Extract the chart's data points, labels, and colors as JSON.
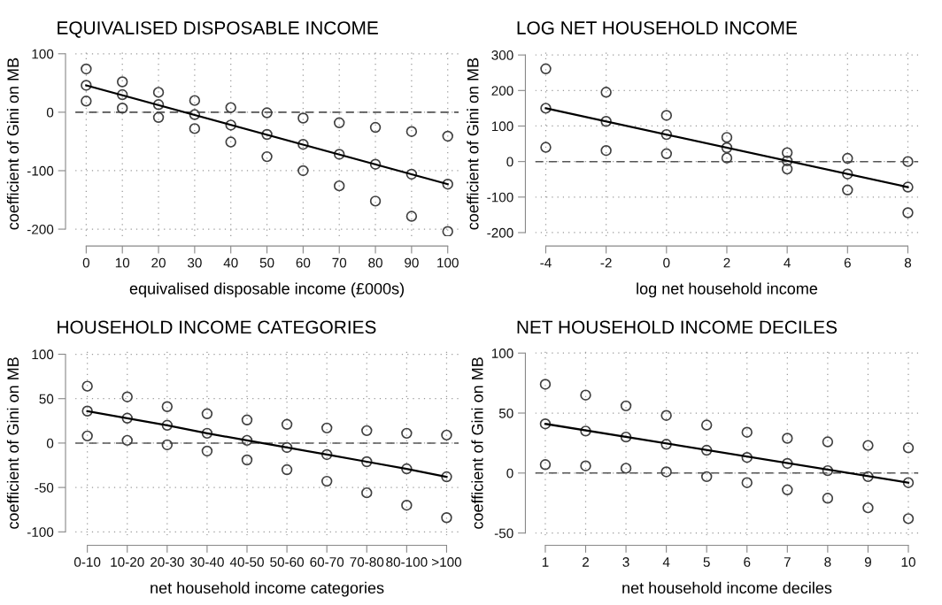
{
  "chart_data": [
    {
      "type": "scatter",
      "title": "EQUIVALISED DISPOSABLE INCOME",
      "xlabel": "equivalised disposable income (£000s)",
      "ylabel": "coefficient of Gini on MB",
      "x": [
        0,
        10,
        20,
        30,
        40,
        50,
        60,
        70,
        80,
        90,
        100
      ],
      "series": [
        {
          "color": "#404040",
          "marker": "circle",
          "values": [
            74,
            52,
            34,
            20,
            8,
            -1,
            -10,
            -18,
            -26,
            -33,
            -41
          ]
        },
        {
          "color": "#404040",
          "marker": "circle",
          "values": [
            46,
            30,
            13,
            -4,
            -22,
            -38,
            -55,
            -72,
            -89,
            -106,
            -123
          ]
        },
        {
          "color": "#404040",
          "marker": "circle",
          "values": [
            19,
            7,
            -9,
            -28,
            -51,
            -76,
            -100,
            -126,
            -152,
            -178,
            -204
          ]
        },
        {
          "type": "line",
          "color": "#000000",
          "line_style": "solid",
          "x": [
            0,
            100
          ],
          "values": [
            46,
            -123
          ]
        }
      ],
      "xlim": [
        -3,
        103
      ],
      "xticks": [
        0,
        10,
        20,
        30,
        40,
        50,
        60,
        70,
        80,
        90,
        100
      ],
      "ylim": [
        -212,
        104
      ],
      "yticks": [
        -200,
        -100,
        0,
        100
      ],
      "ref_lines": [
        {
          "axis": "y",
          "value": 0,
          "color": "#555555",
          "line_style": "dashed"
        }
      ],
      "grid": true
    },
    {
      "type": "scatter",
      "title": "LOG NET HOUSEHOLD INCOME",
      "xlabel": "log net household income",
      "ylabel": "coefficient of Gini on MB",
      "x": [
        -4,
        -2,
        0,
        2,
        4,
        6,
        8
      ],
      "series": [
        {
          "color": "#404040",
          "marker": "circle",
          "values": [
            261,
            195,
            130,
            68,
            25,
            9,
            0
          ]
        },
        {
          "color": "#404040",
          "marker": "circle",
          "values": [
            150,
            113,
            76,
            39,
            2,
            -35,
            -72
          ]
        },
        {
          "color": "#404040",
          "marker": "circle",
          "values": [
            40,
            31,
            22,
            10,
            -21,
            -80,
            -144
          ]
        },
        {
          "type": "line",
          "color": "#000000",
          "line_style": "solid",
          "x": [
            -4,
            8
          ],
          "values": [
            150,
            -72
          ]
        }
      ],
      "xlim": [
        -4.35,
        8.35
      ],
      "xticks": [
        -4,
        -2,
        0,
        2,
        4,
        6,
        8
      ],
      "ylim": [
        -210,
        310
      ],
      "yticks": [
        -200,
        -100,
        0,
        100,
        200,
        300
      ],
      "ref_lines": [
        {
          "axis": "y",
          "value": 0,
          "color": "#555555",
          "line_style": "dashed"
        }
      ],
      "grid": true
    },
    {
      "type": "scatter",
      "title": "HOUSEHOLD INCOME CATEGORIES",
      "xlabel": "net household income categories",
      "ylabel": "coefficient of Gini on MB",
      "categories": [
        "0-10",
        "10-20",
        "20-30",
        "30-40",
        "40-50",
        "50-60",
        "60-70",
        "70-80",
        "80-100",
        ">100"
      ],
      "series": [
        {
          "color": "#404040",
          "marker": "circle",
          "values": [
            64,
            52,
            41,
            33,
            26,
            21,
            17,
            14,
            11,
            9
          ]
        },
        {
          "color": "#404040",
          "marker": "circle",
          "values": [
            36,
            28,
            20,
            11,
            3,
            -5,
            -13,
            -21,
            -29,
            -38
          ]
        },
        {
          "color": "#404040",
          "marker": "circle",
          "values": [
            8,
            3,
            -2,
            -9,
            -19,
            -30,
            -43,
            -56,
            -70,
            -84
          ]
        },
        {
          "type": "line",
          "color": "#000000",
          "line_style": "solid",
          "values": [
            36,
            28,
            20,
            11,
            3,
            -5,
            -13,
            -21,
            -29,
            -38
          ]
        }
      ],
      "ylim": [
        -104,
        104
      ],
      "yticks": [
        -100,
        -50,
        0,
        50,
        100
      ],
      "ref_lines": [
        {
          "axis": "y",
          "value": 0,
          "color": "#555555",
          "line_style": "dashed"
        }
      ],
      "grid": true
    },
    {
      "type": "scatter",
      "title": "NET HOUSEHOLD INCOME DECILES",
      "xlabel": "net household income deciles",
      "ylabel": "coefficient of Gini on MB",
      "x": [
        1,
        2,
        3,
        4,
        5,
        6,
        7,
        8,
        9,
        10
      ],
      "series": [
        {
          "color": "#404040",
          "marker": "circle",
          "values": [
            74,
            65,
            56,
            48,
            40,
            34,
            29,
            26,
            23,
            21
          ]
        },
        {
          "color": "#404040",
          "marker": "circle",
          "values": [
            41,
            35,
            30,
            24,
            19,
            13,
            8,
            2,
            -3,
            -8
          ]
        },
        {
          "color": "#404040",
          "marker": "circle",
          "values": [
            7,
            6,
            4,
            1,
            -3,
            -8,
            -14,
            -21,
            -29,
            -38
          ]
        },
        {
          "type": "line",
          "color": "#000000",
          "line_style": "solid",
          "x": [
            1,
            10
          ],
          "values": [
            41,
            -8
          ]
        }
      ],
      "xlim": [
        0.75,
        10.25
      ],
      "xticks": [
        1,
        2,
        3,
        4,
        5,
        6,
        7,
        8,
        9,
        10
      ],
      "ylim": [
        -52,
        102
      ],
      "yticks": [
        -50,
        0,
        50,
        100
      ],
      "ref_lines": [
        {
          "axis": "y",
          "value": 0,
          "color": "#555555",
          "line_style": "dashed"
        }
      ],
      "grid": true
    }
  ]
}
